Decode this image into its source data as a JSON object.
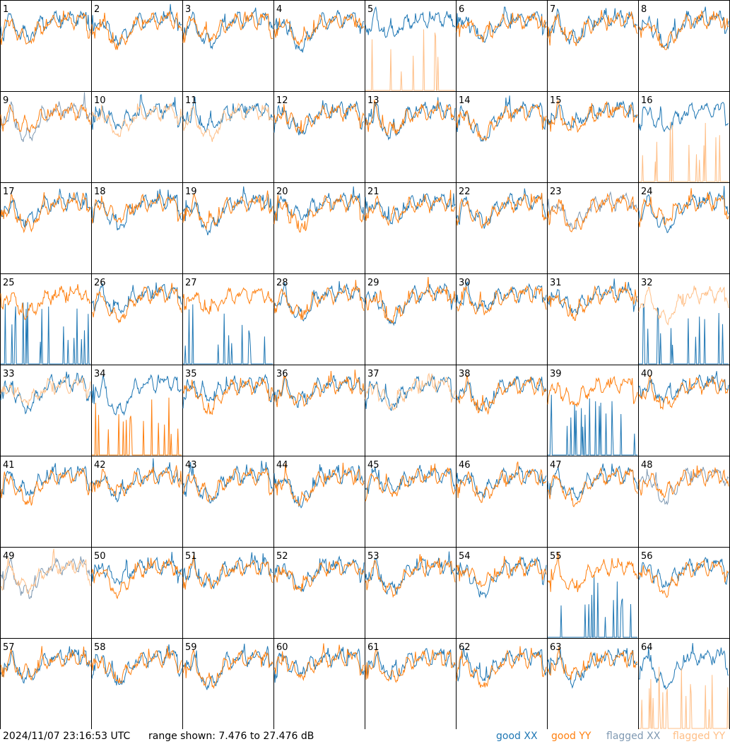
{
  "timestamp": "2024/11/07 23:16:53 UTC",
  "range_text": "range shown: 7.476 to 27.476 dB",
  "legend": {
    "good_xx": "good XX",
    "good_yy": "good YY",
    "flagged_xx": "flagged XX",
    "flagged_yy": "flagged YY"
  },
  "colors": {
    "good_xx": "#1f77b4",
    "good_yy": "#ff7f0e",
    "flagged_xx": "#7f99b2",
    "flagged_yy": "#ffbf87"
  },
  "chart_data": {
    "type": "line",
    "layout": "8x8 grid of small multiples",
    "panel_labels": [
      "1",
      "2",
      "3",
      "4",
      "5",
      "6",
      "7",
      "8",
      "9",
      "10",
      "11",
      "12",
      "13",
      "14",
      "15",
      "16",
      "17",
      "18",
      "19",
      "20",
      "21",
      "22",
      "23",
      "24",
      "25",
      "26",
      "27",
      "28",
      "29",
      "30",
      "31",
      "32",
      "33",
      "34",
      "35",
      "36",
      "37",
      "38",
      "39",
      "40",
      "41",
      "42",
      "43",
      "44",
      "45",
      "46",
      "47",
      "48",
      "49",
      "50",
      "51",
      "52",
      "53",
      "54",
      "55",
      "56",
      "57",
      "58",
      "59",
      "60",
      "61",
      "62",
      "63",
      "64"
    ],
    "ylim": [
      7.476,
      27.476
    ],
    "yunit": "dB",
    "axes_ticks": false,
    "grid": false,
    "legend_position": "bottom-right",
    "series_names": [
      "good XX",
      "good YY",
      "flagged XX",
      "flagged YY"
    ],
    "flagged_xx_panels": [
      9,
      23,
      48,
      49
    ],
    "flagged_yy_panels": [
      5,
      10,
      11,
      16,
      32,
      33,
      37,
      49,
      64
    ],
    "dropout_xx_panels": [
      25,
      27,
      32,
      39,
      55
    ],
    "dropout_yy_panels": [
      5,
      16,
      34,
      64
    ]
  }
}
